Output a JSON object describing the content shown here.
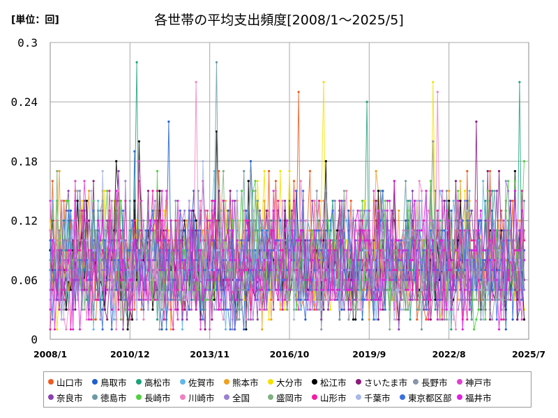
{
  "chart_data": {
    "type": "line",
    "title": "各世帯の平均支出頻度[2008/1～2025/5]",
    "unit_label": "[単位：回]",
    "x_tick_labels": [
      "2008/1",
      "2010/12",
      "2013/11",
      "2016/10",
      "2019/9",
      "2022/8",
      "2025/7"
    ],
    "y_tick_labels": [
      "0",
      "0.06",
      "0.12",
      "0.18",
      "0.24",
      "0.3"
    ],
    "ylim": [
      0,
      0.3
    ],
    "xlim": [
      "2008/1",
      "2025/7"
    ],
    "grid": true,
    "legend_position": "bottom",
    "series": [
      {
        "name": "山口市",
        "color": "#f05a1e"
      },
      {
        "name": "鳥取市",
        "color": "#1f5fcf"
      },
      {
        "name": "高松市",
        "color": "#1aa37a"
      },
      {
        "name": "佐賀市",
        "color": "#62b8e8"
      },
      {
        "name": "熊本市",
        "color": "#f0a020"
      },
      {
        "name": "大分市",
        "color": "#f5e000"
      },
      {
        "name": "松江市",
        "color": "#000000"
      },
      {
        "name": "さいたま市",
        "color": "#8a1a7a"
      },
      {
        "name": "長野市",
        "color": "#8a96a8"
      },
      {
        "name": "神戸市",
        "color": "#e040d0"
      },
      {
        "name": "奈良市",
        "color": "#8a40b0"
      },
      {
        "name": "徳島市",
        "color": "#6a9aa6"
      },
      {
        "name": "長崎市",
        "color": "#50d040"
      },
      {
        "name": "川崎市",
        "color": "#f080c0"
      },
      {
        "name": "全国",
        "color": "#9a80d0"
      },
      {
        "name": "盛岡市",
        "color": "#80b080"
      },
      {
        "name": "山形市",
        "color": "#f020a0"
      },
      {
        "name": "千葉市",
        "color": "#a8b8e8"
      },
      {
        "name": "東京都区部",
        "color": "#3a70e0"
      },
      {
        "name": "福井市",
        "color": "#e020e0"
      }
    ],
    "peaks": [
      {
        "series": "山口市",
        "date": "2017/2",
        "value": 0.25
      },
      {
        "series": "鳥取市",
        "date": "2011/2",
        "value": 0.19
      },
      {
        "series": "鳥取市",
        "date": "2012/5",
        "value": 0.22
      },
      {
        "series": "高松市",
        "date": "2011/3",
        "value": 0.28
      },
      {
        "series": "高松市",
        "date": "2019/8",
        "value": 0.24
      },
      {
        "series": "高松市",
        "date": "2025/3",
        "value": 0.26
      },
      {
        "series": "徳島市",
        "date": "2014/2",
        "value": 0.28
      },
      {
        "series": "松江市",
        "date": "2014/2",
        "value": 0.21
      },
      {
        "series": "松江市",
        "date": "2011/4",
        "value": 0.2
      },
      {
        "series": "大分市",
        "date": "2018/1",
        "value": 0.26
      },
      {
        "series": "大分市",
        "date": "2022/1",
        "value": 0.26
      },
      {
        "series": "川崎市",
        "date": "2013/5",
        "value": 0.26
      },
      {
        "series": "川崎市",
        "date": "2022/3",
        "value": 0.25
      },
      {
        "series": "さいたま市",
        "date": "2023/8",
        "value": 0.22
      },
      {
        "series": "長野市",
        "date": "2022/1",
        "value": 0.2
      }
    ]
  }
}
